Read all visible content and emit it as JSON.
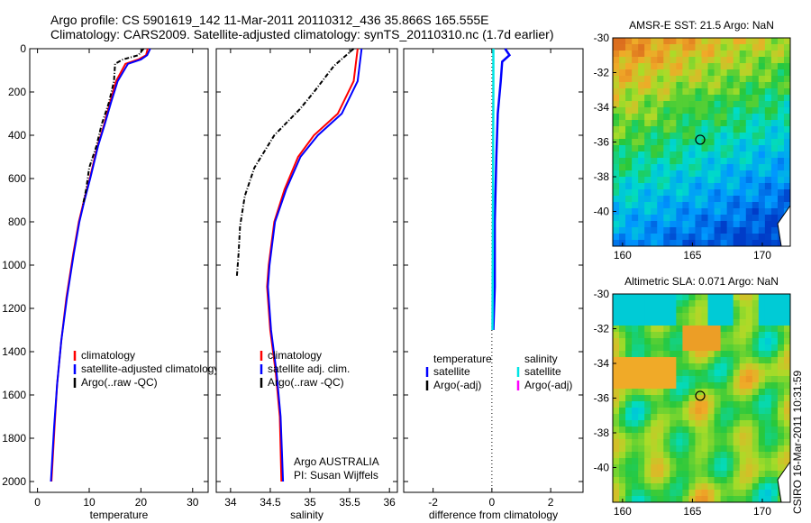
{
  "title": {
    "line1": "Argo profile: CS 5901619_142 11-Mar-2011 20110312_436 35.866S 165.555E",
    "line2": "Climatology: CARS2009. Satellite-adjusted climatology: synTS_20110310.nc (1.7d earlier)"
  },
  "side_label": "CSIRO 16-Mar-2011 10:31:59",
  "colors": {
    "climatology": "#ff0000",
    "satellite": "#0000ff",
    "argo": "#000000",
    "salinity_satellite": "#00e5e5",
    "salinity_argo": "#ff00ff"
  },
  "chart_data": [
    {
      "type": "line",
      "id": "temperature",
      "xlabel": "temperature",
      "xlim": [
        -1.5,
        33
      ],
      "xticks": [
        0,
        10,
        20,
        30
      ],
      "ylim": [
        2050,
        0
      ],
      "yticks": [
        0,
        200,
        400,
        600,
        800,
        1000,
        1200,
        1400,
        1600,
        1800,
        2000
      ],
      "legend": [
        "climatology",
        "satellite-adjusted climatology",
        "Argo(..raw -QC)"
      ],
      "series": [
        {
          "name": "climatology",
          "color": "#ff0000",
          "points": [
            [
              21.3,
              0
            ],
            [
              21.0,
              30
            ],
            [
              19.5,
              50
            ],
            [
              17.0,
              70
            ],
            [
              15.2,
              150
            ],
            [
              14.0,
              250
            ],
            [
              12.9,
              350
            ],
            [
              11.6,
              450
            ],
            [
              10.1,
              600
            ],
            [
              9.0,
              700
            ],
            [
              8.0,
              800
            ],
            [
              6.9,
              950
            ],
            [
              5.6,
              1150
            ],
            [
              4.6,
              1350
            ],
            [
              3.8,
              1550
            ],
            [
              3.3,
              1750
            ],
            [
              2.7,
              2000
            ]
          ]
        },
        {
          "name": "satellite-adjusted climatology",
          "color": "#0000ff",
          "points": [
            [
              21.8,
              0
            ],
            [
              21.2,
              30
            ],
            [
              20.0,
              50
            ],
            [
              17.5,
              70
            ],
            [
              15.5,
              150
            ],
            [
              14.2,
              250
            ],
            [
              13.0,
              350
            ],
            [
              11.7,
              450
            ],
            [
              10.2,
              600
            ],
            [
              9.1,
              700
            ],
            [
              8.1,
              800
            ],
            [
              7.0,
              950
            ],
            [
              5.7,
              1150
            ],
            [
              4.6,
              1350
            ],
            [
              3.8,
              1550
            ],
            [
              3.2,
              1750
            ],
            [
              2.6,
              2000
            ]
          ]
        },
        {
          "name": "Argo(..raw -QC)",
          "color": "#000000",
          "points": [
            [
              20.5,
              0
            ],
            [
              19.5,
              30
            ],
            [
              16.5,
              50
            ],
            [
              15.0,
              70
            ],
            [
              14.8,
              150
            ],
            [
              13.8,
              250
            ],
            [
              12.4,
              350
            ],
            [
              11.4,
              450
            ],
            [
              10.0,
              550
            ],
            [
              9.4,
              650
            ],
            [
              8.8,
              720
            ]
          ]
        }
      ]
    },
    {
      "type": "line",
      "id": "salinity",
      "xlabel": "salinity",
      "xlim": [
        33.82,
        36.1
      ],
      "xticks": [
        34,
        34.5,
        35,
        35.5,
        36
      ],
      "ylim": [
        2050,
        0
      ],
      "legend": [
        "climatology",
        "satellite adj. clim.",
        "Argo(..raw -QC)"
      ],
      "annotation": [
        "Argo AUSTRALIA",
        "PI: Susan Wijffels"
      ],
      "series": [
        {
          "name": "climatology",
          "color": "#ff0000",
          "points": [
            [
              35.6,
              0
            ],
            [
              35.55,
              150
            ],
            [
              35.35,
              300
            ],
            [
              35.05,
              400
            ],
            [
              34.85,
              500
            ],
            [
              34.68,
              650
            ],
            [
              34.55,
              800
            ],
            [
              34.48,
              1000
            ],
            [
              34.46,
              1100
            ],
            [
              34.5,
              1300
            ],
            [
              34.57,
              1500
            ],
            [
              34.62,
              1700
            ],
            [
              34.64,
              2000
            ]
          ]
        },
        {
          "name": "satellite adj. clim.",
          "color": "#0000ff",
          "points": [
            [
              35.65,
              0
            ],
            [
              35.6,
              150
            ],
            [
              35.4,
              300
            ],
            [
              35.1,
              400
            ],
            [
              34.88,
              500
            ],
            [
              34.7,
              650
            ],
            [
              34.56,
              800
            ],
            [
              34.49,
              1000
            ],
            [
              34.47,
              1100
            ],
            [
              34.51,
              1300
            ],
            [
              34.58,
              1500
            ],
            [
              34.63,
              1700
            ],
            [
              34.66,
              2000
            ]
          ]
        },
        {
          "name": "Argo(..raw -QC)",
          "color": "#000000",
          "points": [
            [
              35.55,
              0
            ],
            [
              35.3,
              80
            ],
            [
              35.05,
              200
            ],
            [
              34.87,
              280
            ],
            [
              34.55,
              400
            ],
            [
              34.3,
              550
            ],
            [
              34.18,
              680
            ],
            [
              34.12,
              820
            ],
            [
              34.1,
              950
            ],
            [
              34.08,
              1050
            ]
          ]
        }
      ]
    },
    {
      "type": "line",
      "id": "difference",
      "xlabel": "difference from climatology",
      "xlim": [
        -3,
        3.1
      ],
      "xticks": [
        -2,
        0,
        2
      ],
      "ylim": [
        2050,
        0
      ],
      "legend_left": {
        "header": "temperature",
        "items": [
          "satellite",
          "Argo(-adj)"
        ]
      },
      "legend_right": {
        "header": "salinity",
        "items": [
          "satellite",
          "Argo(-adj)"
        ]
      },
      "series": [
        {
          "name": "temperature satellite",
          "color": "#0000ff",
          "points": [
            [
              0.45,
              0
            ],
            [
              0.6,
              30
            ],
            [
              0.35,
              60
            ],
            [
              0.3,
              150
            ],
            [
              0.2,
              300
            ],
            [
              0.15,
              500
            ],
            [
              0.1,
              800
            ],
            [
              0.1,
              1100
            ],
            [
              0.05,
              1300
            ]
          ]
        },
        {
          "name": "salinity satellite",
          "color": "#00e5e5",
          "points": [
            [
              0.05,
              0
            ],
            [
              0.05,
              200
            ],
            [
              0.04,
              600
            ],
            [
              0.03,
              1000
            ],
            [
              0.02,
              1300
            ]
          ]
        }
      ]
    },
    {
      "type": "heatmap",
      "id": "sst-map",
      "title": "AMSR-E SST: 21.5 Argo: NaN",
      "xlim": [
        159.3,
        172
      ],
      "ylim": [
        -42,
        -30
      ],
      "xticks": [
        160,
        165,
        170
      ],
      "yticks": [
        -30,
        -32,
        -34,
        -36,
        -38,
        -40
      ],
      "marker": [
        165.555,
        -35.866
      ]
    },
    {
      "type": "heatmap",
      "id": "sla-map",
      "title": "Altimetric SLA: 0.071 Argo: NaN",
      "xlim": [
        159.3,
        172
      ],
      "ylim": [
        -42,
        -30
      ],
      "xticks": [
        160,
        165,
        170
      ],
      "yticks": [
        -30,
        -32,
        -34,
        -36,
        -38,
        -40
      ],
      "marker": [
        165.555,
        -35.866
      ]
    }
  ]
}
